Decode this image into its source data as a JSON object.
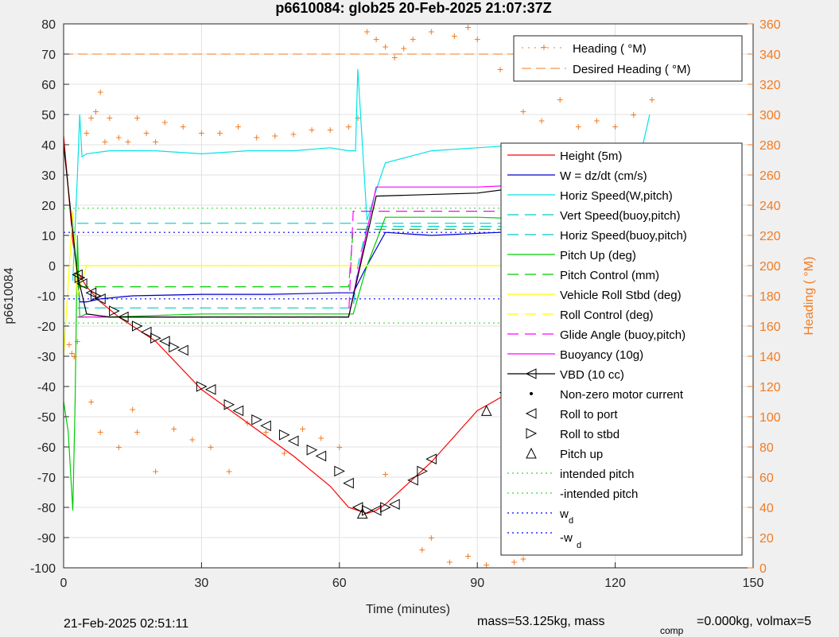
{
  "figure": {
    "title": "p6610084: glob25 20-Feb-2025 21:07:37Z",
    "footer_left": "21-Feb-2025 02:51:11",
    "footer_right_a": "mass=53.125kg, mass",
    "footer_right_sub": "comp",
    "footer_right_b": "=0.000kg, volmax=5"
  },
  "colors": {
    "height": "#ff0000",
    "w": "#0000cc",
    "horiz_speed": "#00e5e5",
    "vert_speed": "#00c8c8",
    "pitch": "#00cc00",
    "roll": "#ffff00",
    "glide": "#ff00ff",
    "buoyancy": "#ff00ff",
    "vbd": "#000000",
    "heading": "#f47b20",
    "intended": "#33dd33",
    "wd": "#0000ff"
  },
  "chart_data": {
    "type": "line",
    "xlabel": "Time (minutes)",
    "ylabel": "p6610084",
    "y2label": "Heading (  °M)",
    "xlim": [
      0,
      150
    ],
    "ylim": [
      -100,
      80
    ],
    "y2lim": [
      0,
      360
    ],
    "xticks": [
      "0",
      "30",
      "60",
      "90",
      "120",
      "150"
    ],
    "yticks": [
      "80",
      "70",
      "60",
      "50",
      "40",
      "30",
      "20",
      "10",
      "0",
      "-10",
      "-20",
      "-30",
      "-40",
      "-50",
      "-60",
      "-70",
      "-80",
      "-90",
      "-100"
    ],
    "y2ticks": [
      "360",
      "340",
      "320",
      "300",
      "280",
      "260",
      "240",
      "220",
      "200",
      "180",
      "160",
      "140",
      "120",
      "100",
      "80",
      "60",
      "40",
      "20",
      "0"
    ],
    "grid": true,
    "legend_heading": {
      "position": "top-right",
      "entries": [
        "Heading (  °M)",
        "Desired Heading (    °M)"
      ]
    },
    "legend_main": {
      "position": "right",
      "entries": [
        "Height (5m)",
        "W = dz/dt (cm/s)",
        "Horiz Speed(W,pitch)",
        "Vert Speed(buoy,pitch)",
        "Horiz Speed(buoy,pitch)",
        "Pitch Up (deg)",
        "Pitch Control (mm)",
        "Vehicle Roll Stbd (deg)",
        "Roll Control (deg)",
        "Glide Angle (buoy,pitch)",
        "Buoyancy (10g)",
        "VBD (10 cc)",
        "Non-zero motor current",
        "Roll to port",
        "Roll to stbd",
        "Pitch up",
        "intended pitch",
        "-intended pitch",
        "w",
        "-w"
      ],
      "wd_sub": "d"
    },
    "series": [
      {
        "name": "Height (5m)",
        "x": [
          0,
          2,
          3,
          5,
          8,
          12,
          20,
          30,
          40,
          50,
          58,
          62,
          64,
          66,
          68,
          70,
          75,
          80,
          90,
          97,
          105,
          110,
          118,
          125,
          128
        ],
        "y": [
          43,
          8,
          -2,
          -7,
          -12,
          -17,
          -25,
          -41,
          -52,
          -63,
          -73,
          -80,
          -81,
          -82,
          -81,
          -79,
          -72,
          -65,
          -48,
          -42,
          -32,
          -25,
          -12,
          -3,
          0
        ]
      },
      {
        "name": "W = dz/dt (cm/s)",
        "x": [
          3,
          3.5,
          5,
          8,
          15,
          30,
          45,
          60,
          62,
          63,
          66,
          70,
          80,
          95,
          110,
          125,
          128
        ],
        "y": [
          -3,
          -12,
          -12,
          -11,
          -10,
          -9.5,
          -9.5,
          -9,
          -9,
          -9,
          0,
          11,
          10,
          11,
          12,
          13,
          13
        ]
      },
      {
        "name": "Horiz Speed(W,pitch)",
        "x": [
          2,
          3,
          3.5,
          4,
          5,
          10,
          20,
          30,
          40,
          50,
          58,
          62,
          63.5,
          64,
          65,
          66,
          68,
          70,
          80,
          90,
          100,
          110,
          120,
          126,
          127.5
        ],
        "y": [
          -5,
          30,
          50,
          36,
          37,
          38,
          38,
          37,
          38,
          38,
          39,
          38,
          38,
          65,
          40,
          15,
          25,
          34,
          38,
          39,
          40,
          39,
          40,
          40,
          50
        ]
      },
      {
        "name": "Vert Speed(buoy,pitch)",
        "x": [
          3,
          5,
          63,
          64,
          66,
          70,
          128
        ],
        "y": [
          -14,
          -14,
          -14,
          0,
          13,
          13,
          13
        ]
      },
      {
        "name": "Horiz Speed(buoy,pitch)",
        "x": [
          3,
          5,
          63,
          64,
          66,
          70,
          128
        ],
        "y": [
          14,
          14,
          14,
          14,
          14,
          14,
          14
        ]
      },
      {
        "name": "Pitch Up (deg)",
        "x": [
          0,
          1,
          2,
          2.5,
          3,
          3.5,
          5,
          10,
          30,
          60,
          62,
          63,
          66,
          70,
          90,
          110,
          128
        ],
        "y": [
          -45,
          -55,
          -81,
          -45,
          10,
          -17,
          -16,
          -17,
          -16,
          -16,
          -16,
          -16,
          0,
          16,
          16,
          15,
          16
        ]
      },
      {
        "name": "Pitch Control (mm)",
        "x": [
          3,
          62,
          63,
          128
        ],
        "y": [
          -7,
          -7,
          12,
          12
        ]
      },
      {
        "name": "Vehicle Roll Stbd (deg)",
        "x": [
          0,
          2,
          3,
          5,
          130
        ],
        "y": [
          -30,
          18,
          -10,
          0,
          0
        ]
      },
      {
        "name": "Roll Control (deg)",
        "x": [
          0,
          128
        ],
        "y": [
          0,
          0
        ]
      },
      {
        "name": "Glide Angle (buoy,pitch)",
        "x": [
          3,
          62,
          63,
          128
        ],
        "y": [
          -17,
          -17,
          18,
          18
        ]
      },
      {
        "name": "Buoyancy (10g)",
        "x": [
          3,
          62,
          68,
          90,
          105,
          115,
          120,
          128
        ],
        "y": [
          -17,
          -17,
          26,
          26,
          27,
          28,
          30,
          33
        ]
      },
      {
        "name": "VBD (10 cc)",
        "x": [
          0,
          3,
          5,
          10,
          20,
          40,
          62,
          68,
          90,
          100,
          105,
          110,
          115,
          120,
          128
        ],
        "y": [
          40,
          -3,
          -16,
          -17,
          -17,
          -17,
          -17,
          23,
          24,
          26,
          27,
          28,
          29,
          30,
          31
        ]
      },
      {
        "name": "Desired Heading (    °M)",
        "x": [
          0,
          128
        ],
        "y2": [
          340,
          340
        ]
      },
      {
        "name": "intended pitch",
        "x": [
          0,
          128
        ],
        "y": [
          19,
          19
        ]
      },
      {
        "name": "-intended pitch",
        "x": [
          0,
          128
        ],
        "y": [
          -19,
          -19
        ]
      },
      {
        "name": "w",
        "x": [
          0,
          128
        ],
        "y": [
          11,
          11
        ]
      },
      {
        "name": "-w",
        "x": [
          0,
          128
        ],
        "y": [
          -11,
          -11
        ]
      }
    ],
    "heading_points": [
      [
        1.2,
        148
      ],
      [
        1.8,
        142
      ],
      [
        2.3,
        140
      ],
      [
        3,
        150
      ],
      [
        5,
        288
      ],
      [
        6,
        298
      ],
      [
        7,
        302
      ],
      [
        8,
        315
      ],
      [
        9,
        282
      ],
      [
        10,
        298
      ],
      [
        12,
        285
      ],
      [
        14,
        282
      ],
      [
        16,
        298
      ],
      [
        18,
        288
      ],
      [
        20,
        282
      ],
      [
        22,
        295
      ],
      [
        26,
        292
      ],
      [
        30,
        288
      ],
      [
        34,
        288
      ],
      [
        38,
        292
      ],
      [
        42,
        285
      ],
      [
        46,
        286
      ],
      [
        50,
        287
      ],
      [
        54,
        290
      ],
      [
        58,
        290
      ],
      [
        62,
        292
      ],
      [
        64,
        298
      ],
      [
        66,
        355
      ],
      [
        68,
        350
      ],
      [
        70,
        345
      ],
      [
        72,
        338
      ],
      [
        74,
        344
      ],
      [
        76,
        350
      ],
      [
        80,
        355
      ],
      [
        85,
        352
      ],
      [
        88,
        358
      ],
      [
        90,
        350
      ],
      [
        95,
        330
      ],
      [
        100,
        302
      ],
      [
        104,
        296
      ],
      [
        108,
        310
      ],
      [
        112,
        292
      ],
      [
        116,
        296
      ],
      [
        120,
        292
      ],
      [
        124,
        300
      ],
      [
        128,
        310
      ],
      [
        6,
        110
      ],
      [
        8,
        90
      ],
      [
        12,
        80
      ],
      [
        15,
        105
      ],
      [
        16,
        90
      ],
      [
        20,
        64
      ],
      [
        24,
        92
      ],
      [
        28,
        85
      ],
      [
        32,
        80
      ],
      [
        36,
        64
      ],
      [
        40,
        96
      ],
      [
        44,
        90
      ],
      [
        48,
        76
      ],
      [
        52,
        92
      ],
      [
        56,
        86
      ],
      [
        60,
        80
      ],
      [
        70,
        62
      ],
      [
        78,
        12
      ],
      [
        80,
        20
      ],
      [
        84,
        4
      ],
      [
        88,
        8
      ],
      [
        92,
        2
      ],
      [
        98,
        4
      ],
      [
        100,
        6
      ],
      [
        104,
        20
      ],
      [
        106,
        30
      ],
      [
        110,
        20
      ],
      [
        112,
        40
      ],
      [
        116,
        36
      ],
      [
        118,
        50
      ],
      [
        120,
        30
      ],
      [
        122,
        20
      ],
      [
        124,
        26
      ],
      [
        126,
        40
      ],
      [
        128,
        60
      ]
    ],
    "markers": {
      "roll_to_port": [
        [
          3,
          -3
        ],
        [
          4,
          -6
        ],
        [
          6,
          -9
        ],
        [
          8,
          -11
        ],
        [
          13,
          -17
        ],
        [
          18,
          -22
        ],
        [
          22,
          -25
        ],
        [
          26,
          -28
        ],
        [
          32,
          -41
        ],
        [
          38,
          -48
        ],
        [
          44,
          -53
        ],
        [
          50,
          -58
        ],
        [
          56,
          -63
        ],
        [
          62,
          -72
        ],
        [
          64,
          -80
        ],
        [
          68,
          -81
        ],
        [
          72,
          -79
        ],
        [
          76,
          -71
        ],
        [
          80,
          -64
        ],
        [
          96,
          -42
        ],
        [
          110,
          -29
        ],
        [
          116,
          -21
        ],
        [
          122,
          -11
        ],
        [
          126,
          -3
        ],
        [
          128,
          0
        ]
      ],
      "roll_to_stbd": [
        [
          3.5,
          -4
        ],
        [
          7,
          -10
        ],
        [
          11,
          -15
        ],
        [
          16,
          -20
        ],
        [
          20,
          -24
        ],
        [
          24,
          -27
        ],
        [
          30,
          -40
        ],
        [
          36,
          -46
        ],
        [
          42,
          -51
        ],
        [
          48,
          -56
        ],
        [
          54,
          -61
        ],
        [
          60,
          -68
        ],
        [
          66,
          -81
        ],
        [
          70,
          -80
        ],
        [
          78,
          -68
        ],
        [
          98,
          -41
        ],
        [
          112,
          -26
        ],
        [
          118,
          -19
        ],
        [
          124,
          -8
        ],
        [
          127,
          -1
        ]
      ],
      "pitch_up": [
        [
          65,
          -82
        ],
        [
          92,
          -48
        ],
        [
          108,
          -33
        ]
      ]
    }
  }
}
